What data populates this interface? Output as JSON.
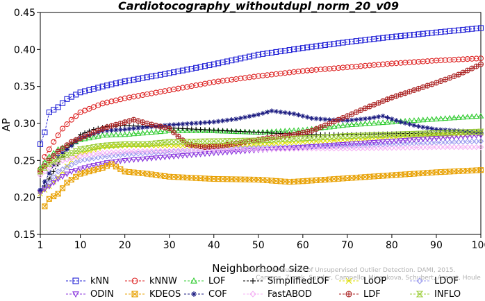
{
  "chart_data": {
    "type": "line",
    "title": "Cardiotocography_withoutdupl_norm_20_v09",
    "xlabel": "Neighborhood size",
    "ylabel": "AP",
    "xlim": [
      1,
      100
    ],
    "ylim": [
      0.15,
      0.45
    ],
    "x_ticks": [
      1,
      10,
      20,
      30,
      40,
      50,
      60,
      70,
      80,
      90,
      100
    ],
    "y_ticks": [
      0.15,
      0.2,
      0.25,
      0.3,
      0.35,
      0.4,
      0.45
    ],
    "x_tick_labels": [
      "1",
      "10",
      "20",
      "30",
      "40",
      "50",
      "60",
      "70",
      "80",
      "90",
      "100"
    ],
    "y_tick_labels": [
      "0.15",
      "0.20",
      "0.25",
      "0.30",
      "0.35",
      "0.40",
      "0.45"
    ],
    "grid": false,
    "legend_position": "bottom",
    "watermark": "Source: Evaluation of Unsupervised Outlier Detection. DAMI, 2015. Campos, Zimek, Sander, Campello, Micenkova, Schubert, Assent, Houle",
    "series": [
      {
        "name": "kNN",
        "color": "#1f1fd6",
        "marker": "square",
        "points": [
          [
            1,
            0.272
          ],
          [
            2,
            0.288
          ],
          [
            3,
            0.315
          ],
          [
            5,
            0.322
          ],
          [
            7,
            0.333
          ],
          [
            10,
            0.342
          ],
          [
            15,
            0.35
          ],
          [
            20,
            0.357
          ],
          [
            30,
            0.368
          ],
          [
            40,
            0.38
          ],
          [
            50,
            0.393
          ],
          [
            60,
            0.402
          ],
          [
            70,
            0.41
          ],
          [
            80,
            0.417
          ],
          [
            90,
            0.423
          ],
          [
            100,
            0.429
          ]
        ]
      },
      {
        "name": "kNNW",
        "color": "#dd2222",
        "marker": "circle",
        "points": [
          [
            1,
            0.238
          ],
          [
            2,
            0.255
          ],
          [
            4,
            0.275
          ],
          [
            6,
            0.293
          ],
          [
            8,
            0.305
          ],
          [
            10,
            0.315
          ],
          [
            15,
            0.327
          ],
          [
            20,
            0.334
          ],
          [
            30,
            0.345
          ],
          [
            40,
            0.356
          ],
          [
            50,
            0.364
          ],
          [
            60,
            0.371
          ],
          [
            70,
            0.376
          ],
          [
            80,
            0.381
          ],
          [
            90,
            0.385
          ],
          [
            100,
            0.388
          ]
        ]
      },
      {
        "name": "LOF",
        "color": "#33cc33",
        "marker": "triangle",
        "points": [
          [
            1,
            0.24
          ],
          [
            3,
            0.255
          ],
          [
            5,
            0.265
          ],
          [
            8,
            0.272
          ],
          [
            10,
            0.278
          ],
          [
            15,
            0.284
          ],
          [
            20,
            0.285
          ],
          [
            30,
            0.29
          ],
          [
            40,
            0.29
          ],
          [
            50,
            0.288
          ],
          [
            60,
            0.291
          ],
          [
            70,
            0.298
          ],
          [
            80,
            0.302
          ],
          [
            90,
            0.306
          ],
          [
            100,
            0.31
          ]
        ]
      },
      {
        "name": "SimplifiedLOF",
        "color": "#000000",
        "marker": "plus",
        "points": [
          [
            1,
            0.206
          ],
          [
            3,
            0.225
          ],
          [
            5,
            0.245
          ],
          [
            7,
            0.265
          ],
          [
            10,
            0.285
          ],
          [
            13,
            0.292
          ],
          [
            16,
            0.296
          ],
          [
            20,
            0.297
          ],
          [
            25,
            0.296
          ],
          [
            30,
            0.294
          ],
          [
            40,
            0.291
          ],
          [
            50,
            0.288
          ],
          [
            60,
            0.285
          ],
          [
            70,
            0.285
          ],
          [
            80,
            0.286
          ],
          [
            90,
            0.287
          ],
          [
            100,
            0.288
          ]
        ]
      },
      {
        "name": "LoOP",
        "color": "#dddd00",
        "marker": "x",
        "points": [
          [
            1,
            0.205
          ],
          [
            3,
            0.215
          ],
          [
            5,
            0.227
          ],
          [
            8,
            0.25
          ],
          [
            10,
            0.26
          ],
          [
            15,
            0.268
          ],
          [
            20,
            0.27
          ],
          [
            30,
            0.27
          ],
          [
            40,
            0.27
          ],
          [
            50,
            0.272
          ],
          [
            60,
            0.275
          ],
          [
            70,
            0.278
          ],
          [
            80,
            0.281
          ],
          [
            90,
            0.284
          ],
          [
            100,
            0.287
          ]
        ]
      },
      {
        "name": "LDOF",
        "color": "#9999ee",
        "marker": "diamond",
        "points": [
          [
            1,
            0.21
          ],
          [
            3,
            0.22
          ],
          [
            5,
            0.235
          ],
          [
            10,
            0.25
          ],
          [
            15,
            0.255
          ],
          [
            20,
            0.258
          ],
          [
            30,
            0.262
          ],
          [
            40,
            0.265
          ],
          [
            50,
            0.267
          ],
          [
            60,
            0.268
          ],
          [
            70,
            0.27
          ],
          [
            80,
            0.272
          ],
          [
            90,
            0.274
          ],
          [
            100,
            0.276
          ]
        ]
      },
      {
        "name": "ODIN",
        "color": "#8833dd",
        "marker": "triangle-down",
        "points": [
          [
            1,
            0.207
          ],
          [
            3,
            0.215
          ],
          [
            5,
            0.225
          ],
          [
            8,
            0.235
          ],
          [
            12,
            0.242
          ],
          [
            16,
            0.247
          ],
          [
            20,
            0.25
          ],
          [
            30,
            0.255
          ],
          [
            40,
            0.26
          ],
          [
            50,
            0.264
          ],
          [
            60,
            0.268
          ],
          [
            70,
            0.272
          ],
          [
            80,
            0.276
          ],
          [
            90,
            0.28
          ],
          [
            100,
            0.284
          ]
        ]
      },
      {
        "name": "KDEOS",
        "color": "#e8a000",
        "marker": "square-x",
        "points": [
          [
            2,
            0.188
          ],
          [
            3,
            0.198
          ],
          [
            5,
            0.205
          ],
          [
            7,
            0.22
          ],
          [
            10,
            0.232
          ],
          [
            15,
            0.24
          ],
          [
            17,
            0.245
          ],
          [
            20,
            0.235
          ],
          [
            25,
            0.232
          ],
          [
            30,
            0.228
          ],
          [
            40,
            0.225
          ],
          [
            50,
            0.224
          ],
          [
            57,
            0.221
          ],
          [
            60,
            0.222
          ],
          [
            70,
            0.226
          ],
          [
            80,
            0.23
          ],
          [
            90,
            0.234
          ],
          [
            100,
            0.237
          ]
        ]
      },
      {
        "name": "COF",
        "color": "#1a1a80",
        "marker": "asterisk",
        "points": [
          [
            1,
            0.21
          ],
          [
            5,
            0.255
          ],
          [
            10,
            0.28
          ],
          [
            15,
            0.29
          ],
          [
            20,
            0.292
          ],
          [
            25,
            0.295
          ],
          [
            30,
            0.298
          ],
          [
            35,
            0.3
          ],
          [
            40,
            0.302
          ],
          [
            45,
            0.306
          ],
          [
            50,
            0.312
          ],
          [
            53,
            0.317
          ],
          [
            58,
            0.313
          ],
          [
            62,
            0.307
          ],
          [
            66,
            0.305
          ],
          [
            70,
            0.304
          ],
          [
            75,
            0.307
          ],
          [
            78,
            0.31
          ],
          [
            82,
            0.302
          ],
          [
            86,
            0.296
          ],
          [
            90,
            0.292
          ],
          [
            95,
            0.29
          ],
          [
            100,
            0.288
          ]
        ]
      },
      {
        "name": "FastABOD",
        "color": "#f4b0f4",
        "marker": "diamond",
        "points": [
          [
            1,
            0.23
          ],
          [
            3,
            0.24
          ],
          [
            5,
            0.248
          ],
          [
            10,
            0.256
          ],
          [
            15,
            0.26
          ],
          [
            20,
            0.262
          ],
          [
            30,
            0.263
          ],
          [
            40,
            0.265
          ],
          [
            50,
            0.265
          ],
          [
            60,
            0.266
          ],
          [
            70,
            0.266
          ],
          [
            80,
            0.267
          ],
          [
            90,
            0.268
          ],
          [
            100,
            0.268
          ]
        ]
      },
      {
        "name": "LDF",
        "color": "#aa2222",
        "marker": "circle-plus",
        "points": [
          [
            1,
            0.235
          ],
          [
            3,
            0.25
          ],
          [
            5,
            0.262
          ],
          [
            8,
            0.275
          ],
          [
            10,
            0.28
          ],
          [
            13,
            0.288
          ],
          [
            16,
            0.295
          ],
          [
            19,
            0.3
          ],
          [
            22,
            0.305
          ],
          [
            25,
            0.3
          ],
          [
            30,
            0.293
          ],
          [
            34,
            0.272
          ],
          [
            38,
            0.268
          ],
          [
            42,
            0.27
          ],
          [
            47,
            0.275
          ],
          [
            52,
            0.28
          ],
          [
            58,
            0.285
          ],
          [
            62,
            0.29
          ],
          [
            66,
            0.3
          ],
          [
            70,
            0.31
          ],
          [
            75,
            0.323
          ],
          [
            80,
            0.335
          ],
          [
            85,
            0.345
          ],
          [
            90,
            0.355
          ],
          [
            95,
            0.366
          ],
          [
            100,
            0.38
          ]
        ]
      },
      {
        "name": "INFLO",
        "color": "#99cc33",
        "marker": "hourglass",
        "points": [
          [
            1,
            0.235
          ],
          [
            3,
            0.245
          ],
          [
            6,
            0.255
          ],
          [
            10,
            0.265
          ],
          [
            15,
            0.27
          ],
          [
            20,
            0.272
          ],
          [
            25,
            0.272
          ],
          [
            30,
            0.275
          ],
          [
            40,
            0.276
          ],
          [
            50,
            0.277
          ],
          [
            60,
            0.28
          ],
          [
            70,
            0.283
          ],
          [
            80,
            0.285
          ],
          [
            90,
            0.287
          ],
          [
            100,
            0.289
          ]
        ]
      }
    ]
  }
}
